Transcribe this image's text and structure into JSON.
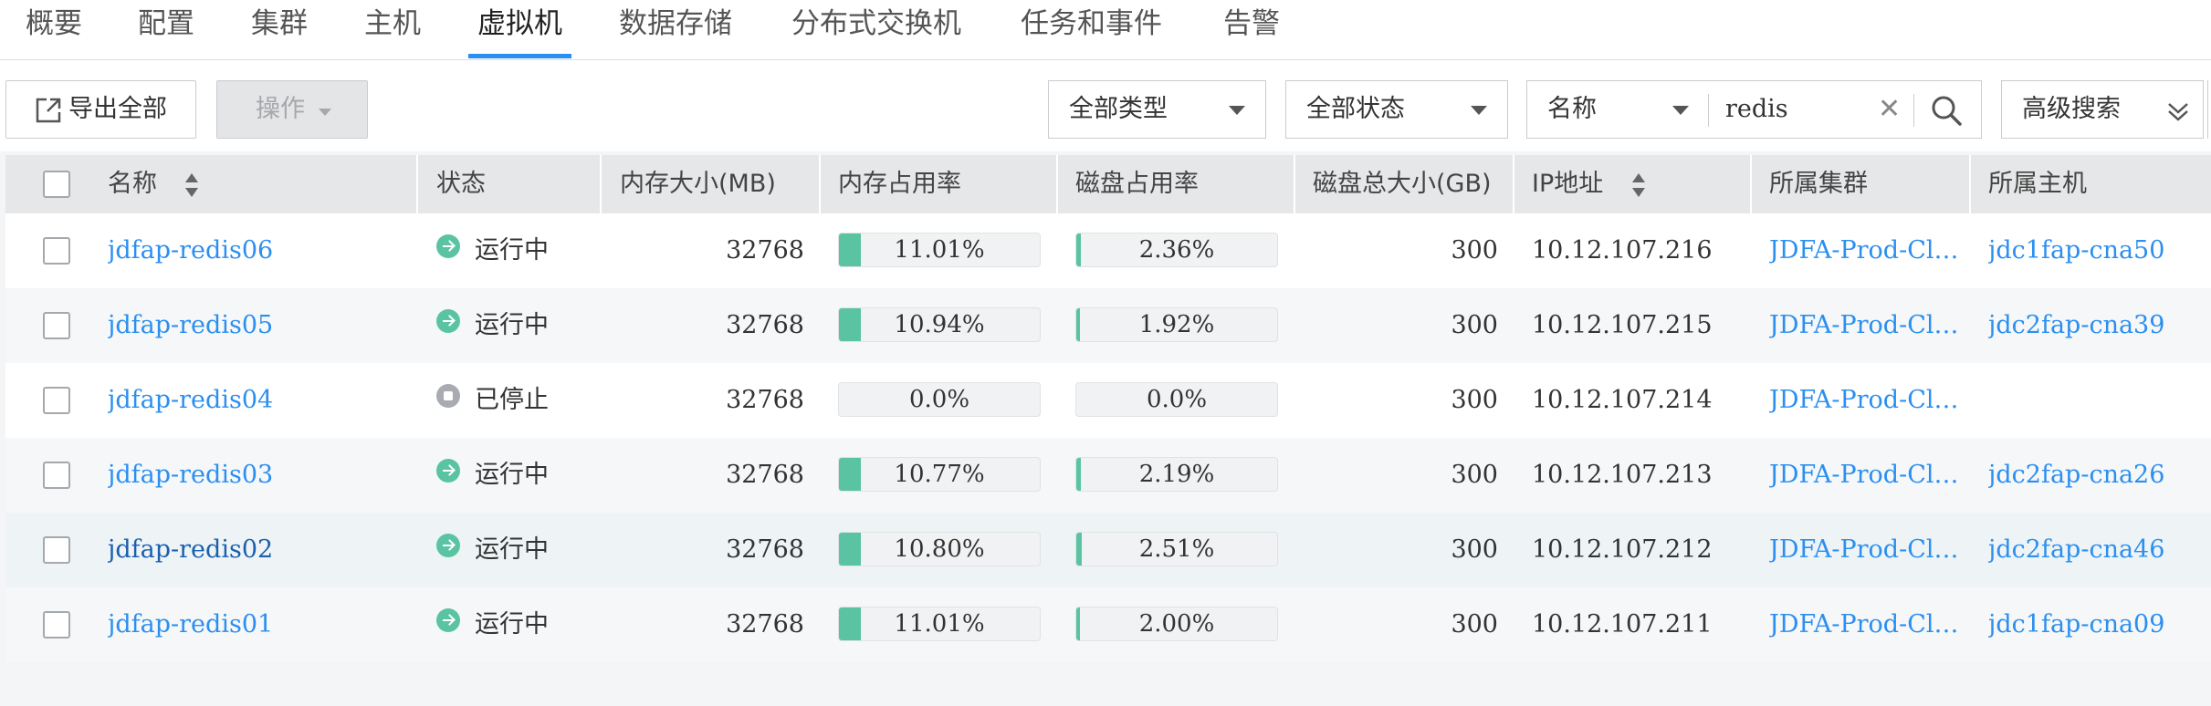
{
  "tabs": [
    {
      "label": "概要"
    },
    {
      "label": "配置"
    },
    {
      "label": "集群"
    },
    {
      "label": "主机"
    },
    {
      "label": "虚拟机",
      "active": true
    },
    {
      "label": "数据存储"
    },
    {
      "label": "分布式交换机"
    },
    {
      "label": "任务和事件"
    },
    {
      "label": "告警"
    }
  ],
  "toolbar": {
    "export_label": "导出全部",
    "operation_label": "操作",
    "type_filter": "全部类型",
    "status_filter": "全部状态",
    "search_field": "名称",
    "search_value": "redis",
    "advanced_search_label": "高级搜索"
  },
  "table": {
    "headers": {
      "name": "名称",
      "status": "状态",
      "memory": "内存大小(MB)",
      "mem_usage": "内存占用率",
      "disk_usage": "磁盘占用率",
      "disk_total": "磁盘总大小(GB)",
      "ip": "IP地址",
      "cluster": "所属集群",
      "host": "所属主机"
    },
    "rows": [
      {
        "name": "jdfap-redis06",
        "status": "运行中",
        "state": "running",
        "memory": "32768",
        "mem_usage": "11.01%",
        "mem_pct": 11.01,
        "disk_usage": "2.36%",
        "disk_pct": 2.36,
        "disk_total": "300",
        "ip": "10.12.107.216",
        "cluster": "JDFA-Prod-Cl…",
        "host": "jdc1fap-cna50"
      },
      {
        "name": "jdfap-redis05",
        "status": "运行中",
        "state": "running",
        "memory": "32768",
        "mem_usage": "10.94%",
        "mem_pct": 10.94,
        "disk_usage": "1.92%",
        "disk_pct": 1.92,
        "disk_total": "300",
        "ip": "10.12.107.215",
        "cluster": "JDFA-Prod-Cl…",
        "host": "jdc2fap-cna39"
      },
      {
        "name": "jdfap-redis04",
        "status": "已停止",
        "state": "stopped",
        "memory": "32768",
        "mem_usage": "0.0%",
        "mem_pct": 0,
        "disk_usage": "0.0%",
        "disk_pct": 0,
        "disk_total": "300",
        "ip": "10.12.107.214",
        "cluster": "JDFA-Prod-Cl…",
        "host": ""
      },
      {
        "name": "jdfap-redis03",
        "status": "运行中",
        "state": "running",
        "memory": "32768",
        "mem_usage": "10.77%",
        "mem_pct": 10.77,
        "disk_usage": "2.19%",
        "disk_pct": 2.19,
        "disk_total": "300",
        "ip": "10.12.107.213",
        "cluster": "JDFA-Prod-Cl…",
        "host": "jdc2fap-cna26"
      },
      {
        "name": "jdfap-redis02",
        "status": "运行中",
        "state": "running",
        "memory": "32768",
        "mem_usage": "10.80%",
        "mem_pct": 10.8,
        "disk_usage": "2.51%",
        "disk_pct": 2.51,
        "disk_total": "300",
        "ip": "10.12.107.212",
        "cluster": "JDFA-Prod-Cl…",
        "host": "jdc2fap-cna46",
        "hovered": true
      },
      {
        "name": "jdfap-redis01",
        "status": "运行中",
        "state": "running",
        "memory": "32768",
        "mem_usage": "11.01%",
        "mem_pct": 11.01,
        "disk_usage": "2.00%",
        "disk_pct": 2.0,
        "disk_total": "300",
        "ip": "10.12.107.211",
        "cluster": "JDFA-Prod-Cl…",
        "host": "jdc1fap-cna09"
      }
    ]
  },
  "colors": {
    "accent": "#2b8ff0",
    "running": "#5ac4a2",
    "stopped": "#a8abb0"
  }
}
